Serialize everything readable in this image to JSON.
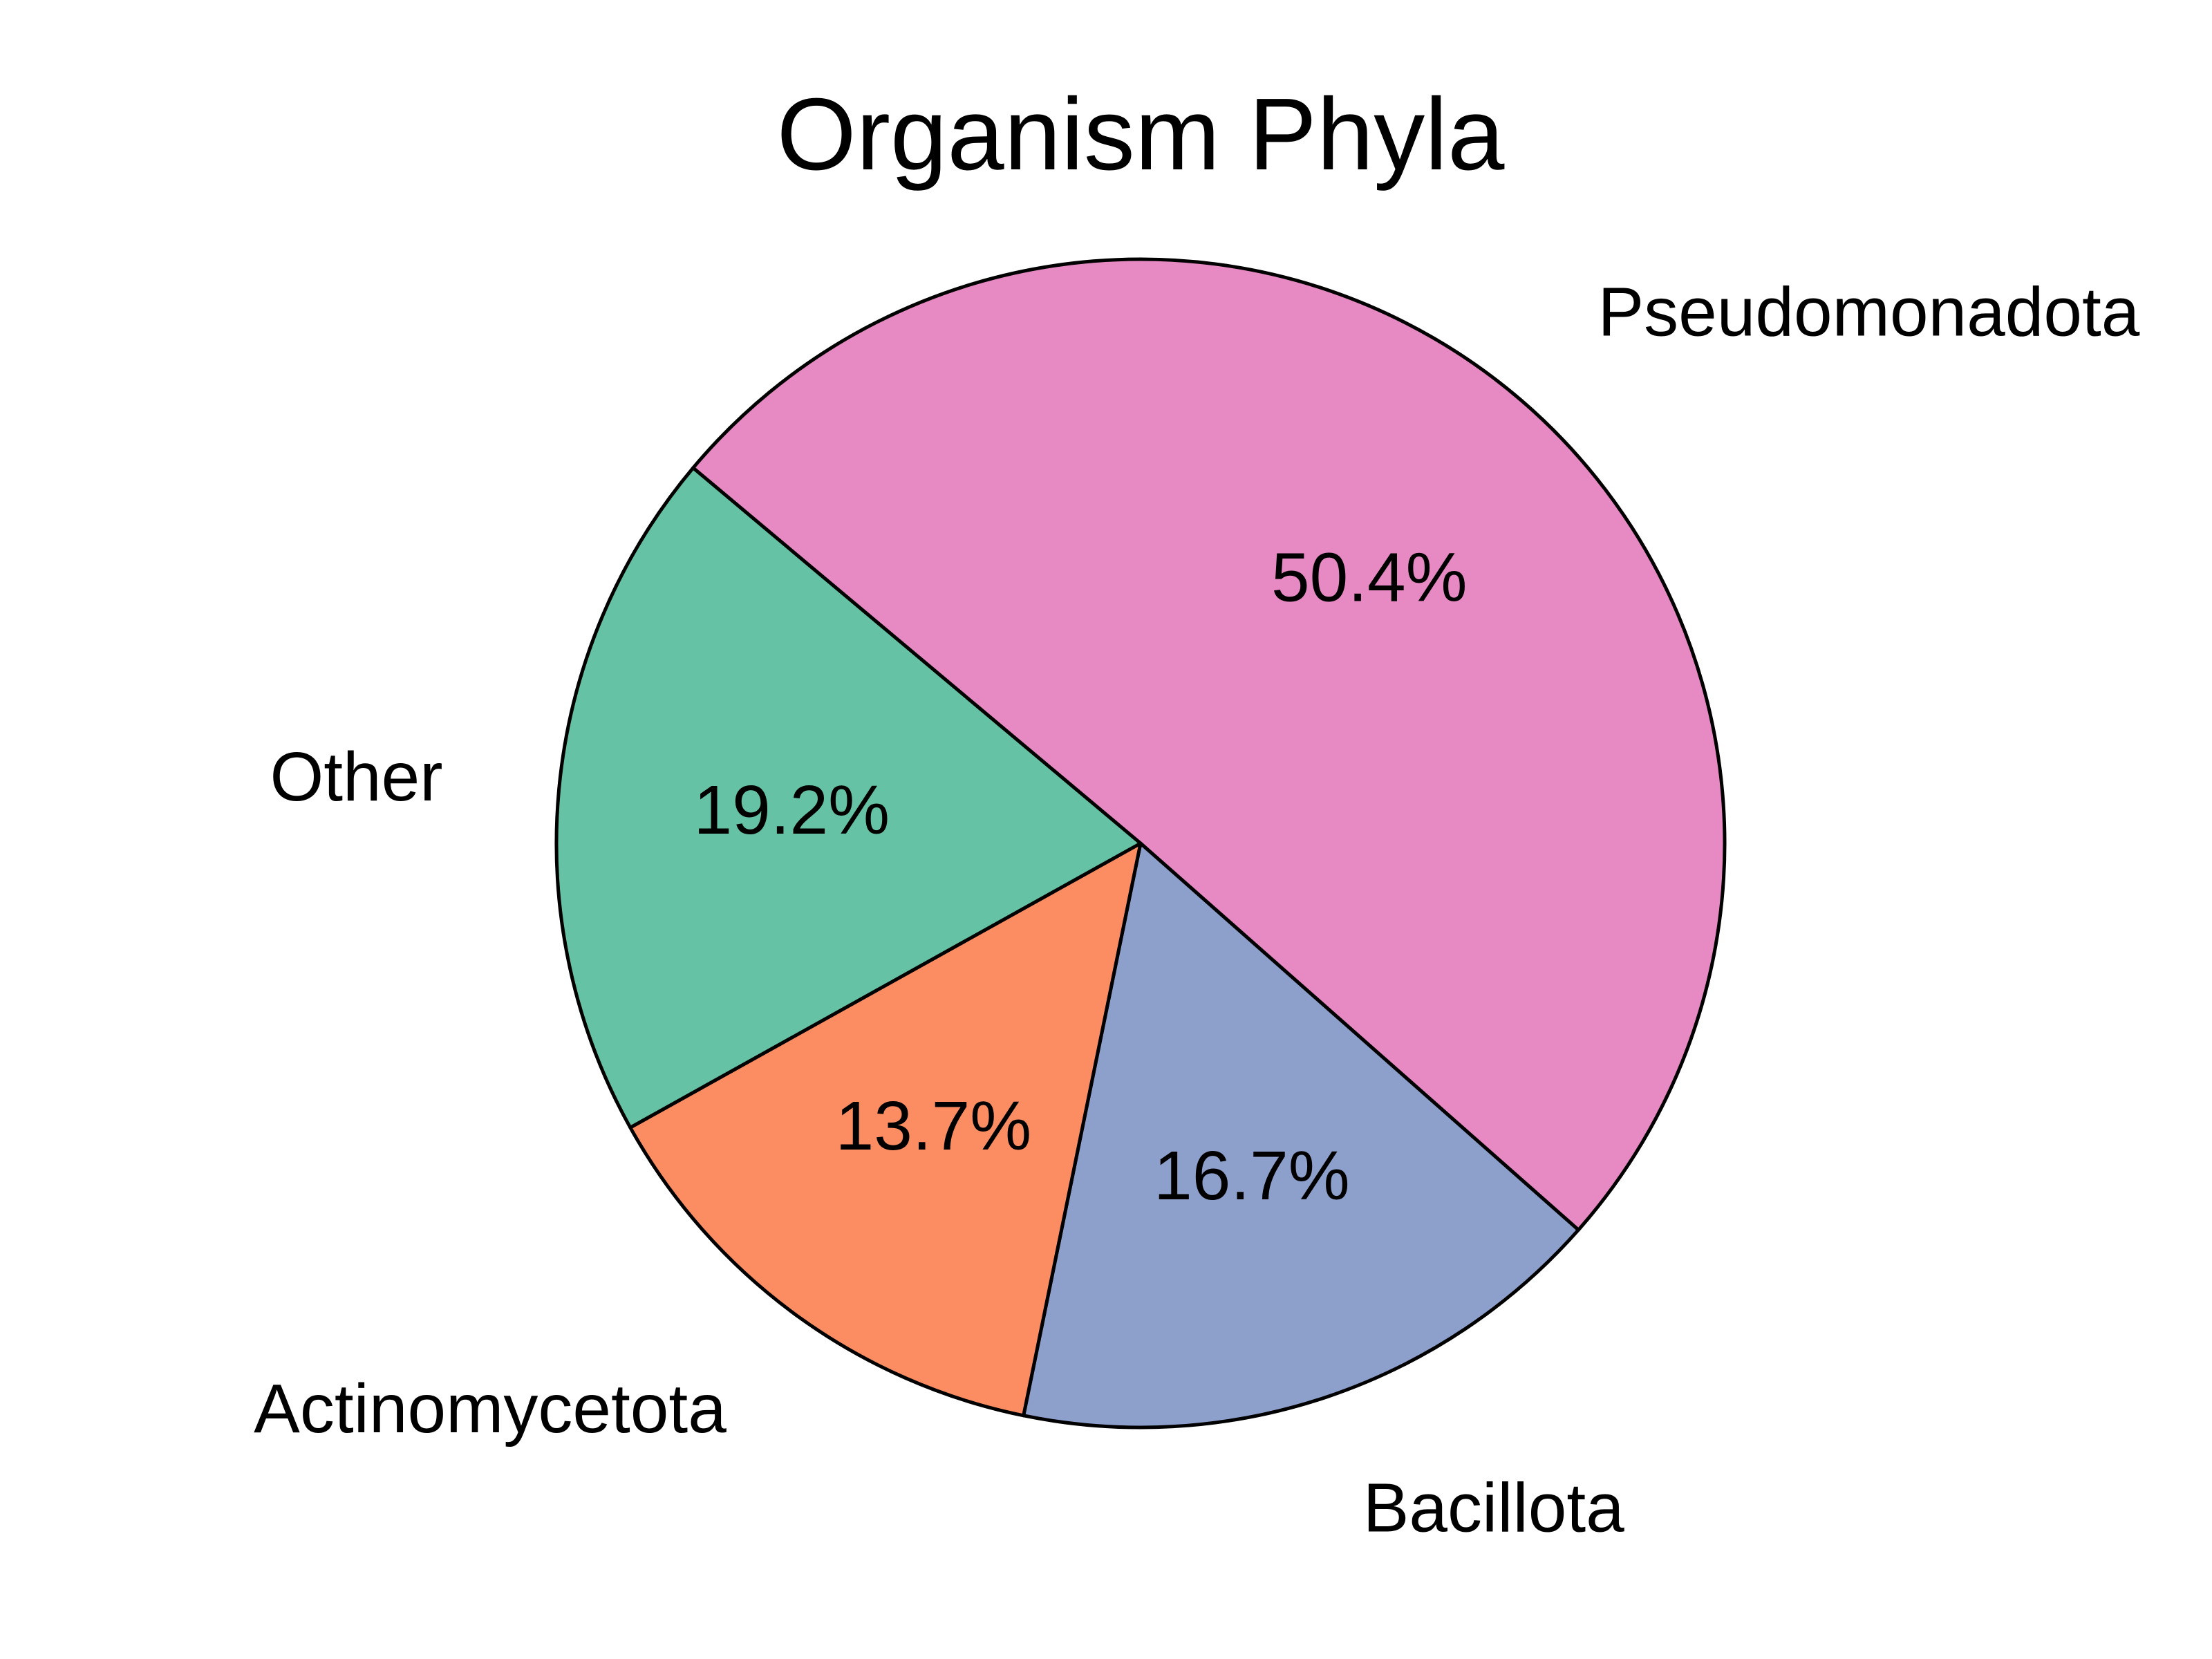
{
  "chart_data": {
    "type": "pie",
    "title": "Organism Phyla",
    "slices": [
      {
        "label": "Pseudomonadota",
        "value": 50.4,
        "pct_label": "50.4%",
        "color": "#E78AC3"
      },
      {
        "label": "Bacillota",
        "value": 16.7,
        "pct_label": "16.7%",
        "color": "#8DA0CB"
      },
      {
        "label": "Actinomycetota",
        "value": 13.7,
        "pct_label": "13.7%",
        "color": "#FC8D62"
      },
      {
        "label": "Other",
        "value": 19.2,
        "pct_label": "19.2%",
        "color": "#66C2A5"
      }
    ],
    "start_angle_deg": 140,
    "direction": "clockwise"
  }
}
